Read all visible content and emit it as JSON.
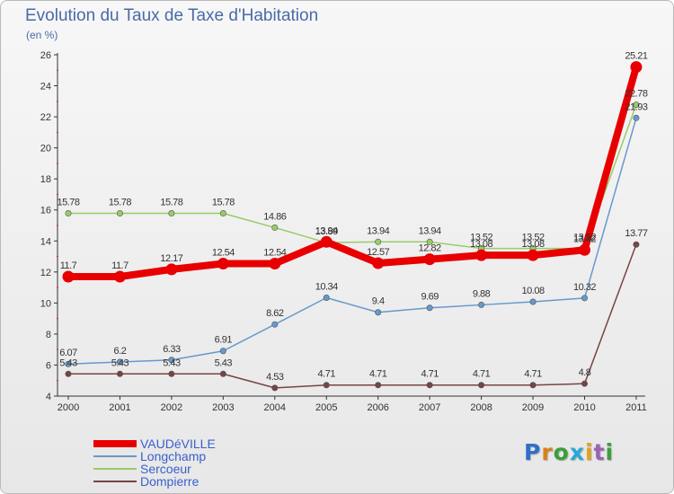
{
  "title": "Evolution du Taux de Taxe d'Habitation",
  "subtitle": "(en %)",
  "watermark": {
    "text": "Proxiti",
    "colors": [
      "#2e6fc9",
      "#d9801c",
      "#3a9f3a",
      "#2aa7d8",
      "#e0a21c",
      "#9a63b5",
      "#3a9f3a"
    ]
  },
  "chart_data": {
    "type": "line",
    "x": [
      "2000",
      "2001",
      "2002",
      "2003",
      "2004",
      "2005",
      "2006",
      "2007",
      "2008",
      "2009",
      "2010",
      "2011"
    ],
    "ylim": [
      4,
      26
    ],
    "yticks": [
      "4",
      "6",
      "8",
      "10",
      "12",
      "14",
      "16",
      "18",
      "20",
      "22",
      "24",
      "26"
    ],
    "grid": false,
    "legend_position": "bottom-left",
    "series": [
      {
        "name": "VAUDéVILLE",
        "color": "#e80000",
        "values": [
          11.7,
          11.7,
          12.17,
          12.54,
          12.54,
          13.94,
          12.57,
          12.82,
          13.08,
          13.08,
          13.42,
          25.21
        ],
        "labels": [
          "11.7",
          "11.7",
          "12.17",
          "12.54",
          "12.54",
          "13.94",
          "12.57",
          "12.82",
          "13.08",
          "13.08",
          "13.42",
          "25.21"
        ]
      },
      {
        "name": "Longchamp",
        "color": "#6699cc",
        "values": [
          6.07,
          6.2,
          6.33,
          6.91,
          8.62,
          10.34,
          9.4,
          9.69,
          9.88,
          10.08,
          10.32,
          21.93
        ],
        "labels": [
          "6.07",
          "6.2",
          "6.33",
          "6.91",
          "8.62",
          "10.34",
          "9.4",
          "9.69",
          "9.88",
          "10.08",
          "10.32",
          "21.93"
        ]
      },
      {
        "name": "Sercoeur",
        "color": "#99cc66",
        "values": [
          15.78,
          15.78,
          15.78,
          15.78,
          14.86,
          13.89,
          13.94,
          13.94,
          13.52,
          13.52,
          13.52,
          22.78
        ],
        "labels": [
          "15.78",
          "15.78",
          "15.78",
          "15.78",
          "14.86",
          "13.89",
          "13.94",
          "13.94",
          "13.52",
          "13.52",
          "13.52",
          "22.78"
        ]
      },
      {
        "name": "Dompierre",
        "color": "#774444",
        "values": [
          5.43,
          5.43,
          5.43,
          5.43,
          4.53,
          4.71,
          4.71,
          4.71,
          4.71,
          4.71,
          4.8,
          13.77
        ],
        "labels": [
          "5.43",
          "5.43",
          "5.43",
          "5.43",
          "4.53",
          "4.71",
          "4.71",
          "4.71",
          "4.71",
          "4.71",
          "4.8",
          "13.77"
        ]
      }
    ]
  }
}
